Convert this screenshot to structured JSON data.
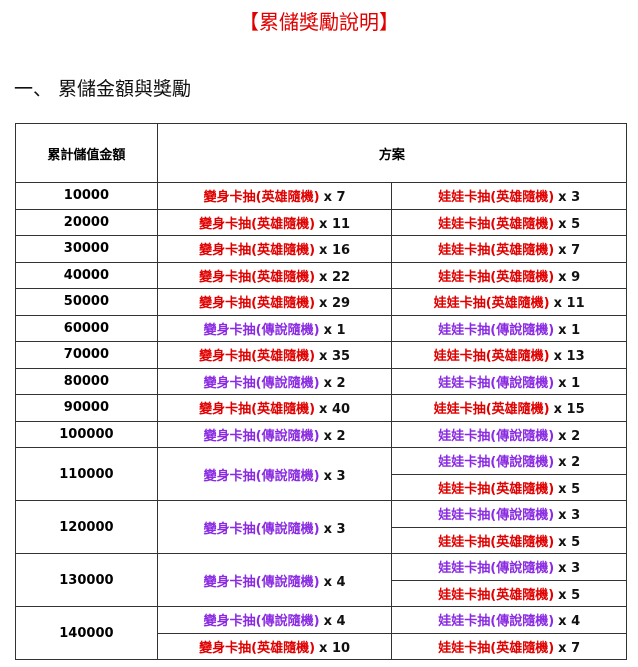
{
  "header": {
    "title": "【累儲獎勵說明】",
    "section": "一、 累儲金額與獎勵"
  },
  "table": {
    "columns": [
      "累計儲值金額",
      "方案"
    ],
    "rows": [
      {
        "amount": "10000",
        "left": [
          {
            "item": "變身卡抽(英雄隨機)",
            "qty": "x 7",
            "color": "#e00000"
          }
        ],
        "right": [
          {
            "item": "娃娃卡抽(英雄隨機)",
            "qty": "x 3",
            "color": "#e00000"
          }
        ]
      },
      {
        "amount": "20000",
        "left": [
          {
            "item": "變身卡抽(英雄隨機)",
            "qty": "x 11",
            "color": "#e00000"
          }
        ],
        "right": [
          {
            "item": "娃娃卡抽(英雄隨機)",
            "qty": "x 5",
            "color": "#e00000"
          }
        ]
      },
      {
        "amount": "30000",
        "left": [
          {
            "item": "變身卡抽(英雄隨機)",
            "qty": "x 16",
            "color": "#e00000"
          }
        ],
        "right": [
          {
            "item": "娃娃卡抽(英雄隨機)",
            "qty": "x 7",
            "color": "#e00000"
          }
        ]
      },
      {
        "amount": "40000",
        "left": [
          {
            "item": "變身卡抽(英雄隨機)",
            "qty": "x 22",
            "color": "#e00000"
          }
        ],
        "right": [
          {
            "item": "娃娃卡抽(英雄隨機)",
            "qty": "x 9",
            "color": "#e00000"
          }
        ]
      },
      {
        "amount": "50000",
        "left": [
          {
            "item": "變身卡抽(英雄隨機)",
            "qty": "x 29",
            "color": "#e00000"
          }
        ],
        "right": [
          {
            "item": "娃娃卡抽(英雄隨機)",
            "qty": "x 11",
            "color": "#e00000"
          }
        ]
      },
      {
        "amount": "60000",
        "left": [
          {
            "item": "變身卡抽(傳說隨機)",
            "qty": "x 1",
            "color": "#8a2be2"
          }
        ],
        "right": [
          {
            "item": "娃娃卡抽(傳說隨機)",
            "qty": "x 1",
            "color": "#8a2be2"
          }
        ]
      },
      {
        "amount": "70000",
        "left": [
          {
            "item": "變身卡抽(英雄隨機)",
            "qty": "x 35",
            "color": "#e00000"
          }
        ],
        "right": [
          {
            "item": "娃娃卡抽(英雄隨機)",
            "qty": "x 13",
            "color": "#e00000"
          }
        ]
      },
      {
        "amount": "80000",
        "left": [
          {
            "item": "變身卡抽(傳說隨機)",
            "qty": "x 2",
            "color": "#8a2be2"
          }
        ],
        "right": [
          {
            "item": "娃娃卡抽(傳說隨機)",
            "qty": "x 1",
            "color": "#8a2be2"
          }
        ]
      },
      {
        "amount": "90000",
        "left": [
          {
            "item": "變身卡抽(英雄隨機)",
            "qty": "x 40",
            "color": "#e00000"
          }
        ],
        "right": [
          {
            "item": "娃娃卡抽(英雄隨機)",
            "qty": "x 15",
            "color": "#e00000"
          }
        ]
      },
      {
        "amount": "100000",
        "left": [
          {
            "item": "變身卡抽(傳說隨機)",
            "qty": "x 2",
            "color": "#8a2be2"
          }
        ],
        "right": [
          {
            "item": "娃娃卡抽(傳說隨機)",
            "qty": "x 2",
            "color": "#8a2be2"
          }
        ]
      },
      {
        "amount": "110000",
        "left": [
          {
            "item": "變身卡抽(傳說隨機)",
            "qty": "x 3",
            "color": "#8a2be2"
          }
        ],
        "right": [
          {
            "item": "娃娃卡抽(傳說隨機)",
            "qty": "x 2",
            "color": "#8a2be2"
          },
          {
            "item": "娃娃卡抽(英雄隨機)",
            "qty": "x 5",
            "color": "#e00000"
          }
        ]
      },
      {
        "amount": "120000",
        "left": [
          {
            "item": "變身卡抽(傳說隨機)",
            "qty": "x 3",
            "color": "#8a2be2"
          }
        ],
        "right": [
          {
            "item": "娃娃卡抽(傳說隨機)",
            "qty": "x 3",
            "color": "#8a2be2"
          },
          {
            "item": "娃娃卡抽(英雄隨機)",
            "qty": "x 5",
            "color": "#e00000"
          }
        ]
      },
      {
        "amount": "130000",
        "left": [
          {
            "item": "變身卡抽(傳說隨機)",
            "qty": "x 4",
            "color": "#8a2be2"
          }
        ],
        "right": [
          {
            "item": "娃娃卡抽(傳說隨機)",
            "qty": "x 3",
            "color": "#8a2be2"
          },
          {
            "item": "娃娃卡抽(英雄隨機)",
            "qty": "x 5",
            "color": "#e00000"
          }
        ]
      },
      {
        "amount": "140000",
        "left": [
          {
            "item": "變身卡抽(傳說隨機)",
            "qty": "x 4",
            "color": "#8a2be2"
          },
          {
            "item": "變身卡抽(英雄隨機)",
            "qty": "x 10",
            "color": "#e00000"
          }
        ],
        "right": [
          {
            "item": "娃娃卡抽(傳說隨機)",
            "qty": "x 4",
            "color": "#8a2be2"
          },
          {
            "item": "娃娃卡抽(英雄隨機)",
            "qty": "x 7",
            "color": "#e00000"
          }
        ]
      }
    ]
  }
}
